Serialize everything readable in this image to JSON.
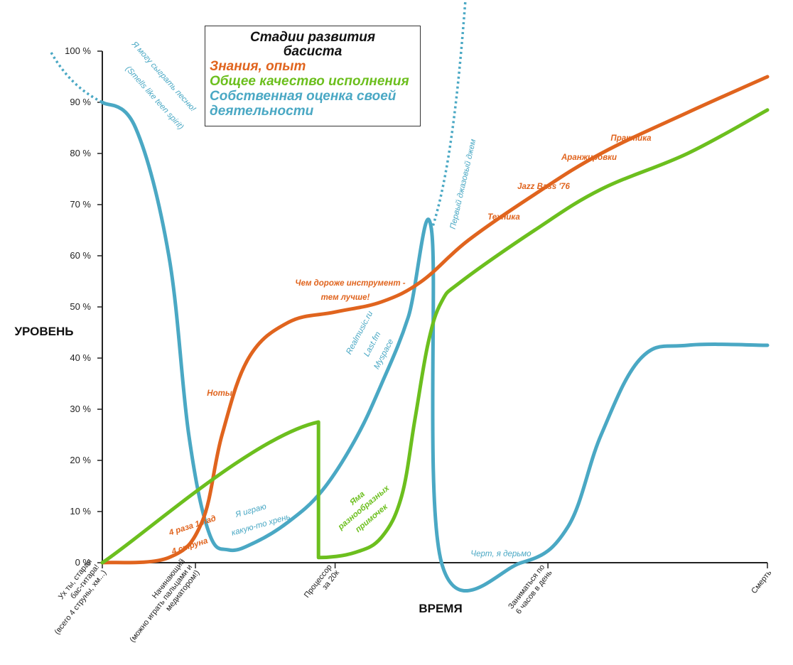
{
  "chart_data": {
    "type": "line",
    "title": "Стадии развития басиста",
    "ylabel": "УРОВЕНЬ",
    "xlabel": "ВРЕМЯ",
    "ylim": [
      0,
      100
    ],
    "xlim": [
      0,
      100
    ],
    "y_ticks": [
      "0 %",
      "10 %",
      "20 %",
      "30 %",
      "40 %",
      "50 %",
      "60 %",
      "70 %",
      "80 %",
      "90 %",
      "100 %"
    ],
    "x_ticks": [
      {
        "x": 0,
        "lines": [
          "Ух ты, старая",
          "бас-гитара!",
          "(всего 4 струны, хм...)"
        ]
      },
      {
        "x": 14,
        "lines": [
          "Начинающий",
          "(можно играть пальцами и",
          "медиатором!)"
        ]
      },
      {
        "x": 35,
        "lines": [
          "Процессор",
          "за 20к"
        ]
      },
      {
        "x": 67,
        "lines": [
          "Заниматься по",
          "6 часов в день"
        ]
      },
      {
        "x": 100,
        "lines": [
          "Смерть"
        ]
      }
    ],
    "legend_placement": "top-center",
    "series": [
      {
        "name": "Знания, опыт",
        "color": "#e0641e",
        "points": [
          [
            0,
            0
          ],
          [
            10,
            1
          ],
          [
            15,
            8
          ],
          [
            18,
            25
          ],
          [
            22,
            40
          ],
          [
            28,
            47
          ],
          [
            35,
            49
          ],
          [
            42,
            51
          ],
          [
            48,
            55
          ],
          [
            55,
            63
          ],
          [
            65,
            72
          ],
          [
            75,
            80
          ],
          [
            88,
            88
          ],
          [
            100,
            95
          ]
        ]
      },
      {
        "name": "Общее качество исполнения",
        "color": "#6cbf1e",
        "points": [
          [
            0,
            0
          ],
          [
            32.5,
            27.5
          ],
          [
            32.5,
            1
          ],
          [
            38,
            2
          ],
          [
            42,
            5
          ],
          [
            45,
            13
          ],
          [
            47,
            28
          ],
          [
            49,
            43
          ],
          [
            51,
            51
          ],
          [
            54,
            55
          ],
          [
            65,
            65
          ],
          [
            75,
            73
          ],
          [
            88,
            80
          ],
          [
            100,
            88.5
          ]
        ]
      },
      {
        "name": "Собственная оценка своей деятельности",
        "color": "#4aa8c4",
        "points": [
          [
            0,
            90
          ],
          [
            5,
            85
          ],
          [
            10,
            60
          ],
          [
            13,
            25
          ],
          [
            16,
            6
          ],
          [
            19,
            2.5
          ],
          [
            23,
            4
          ],
          [
            28,
            8
          ],
          [
            33,
            14
          ],
          [
            38,
            24
          ],
          [
            42,
            35
          ],
          [
            46,
            48
          ],
          [
            49.5,
            65
          ],
          [
            51,
            0
          ],
          [
            63,
            0
          ],
          [
            70,
            7
          ],
          [
            75,
            25
          ],
          [
            81,
            40
          ],
          [
            88,
            42.5
          ],
          [
            100,
            42.5
          ]
        ]
      }
    ],
    "annotations": [
      {
        "text": "Я могу сыграть песню!",
        "color": "#4aa8c4"
      },
      {
        "text": "(Smells like teen spirit)",
        "color": "#4aa8c4"
      },
      {
        "text": "Ноты",
        "color": "#e0641e"
      },
      {
        "text": "4 раза 1 лад",
        "color": "#e0641e"
      },
      {
        "text": "4 струна",
        "color": "#e0641e"
      },
      {
        "text": "Я играю",
        "color": "#4aa8c4"
      },
      {
        "text": "какую-то хрень",
        "color": "#4aa8c4"
      },
      {
        "text": "Чем дороже инструмент -",
        "color": "#e0641e"
      },
      {
        "text": "тем лучше!",
        "color": "#e0641e"
      },
      {
        "text": "Realmusic.ru",
        "color": "#4aa8c4"
      },
      {
        "text": "Last.fm",
        "color": "#4aa8c4"
      },
      {
        "text": "Myspace",
        "color": "#4aa8c4"
      },
      {
        "text": "Яма",
        "color": "#6cbf1e"
      },
      {
        "text": "разнообразных",
        "color": "#6cbf1e"
      },
      {
        "text": "примочек",
        "color": "#6cbf1e"
      },
      {
        "text": "Первый джазовый джем",
        "color": "#4aa8c4"
      },
      {
        "text": "Черт, я дерьмо",
        "color": "#4aa8c4"
      },
      {
        "text": "Техника",
        "color": "#e0641e"
      },
      {
        "text": "Jazz Bass '76",
        "color": "#e0641e"
      },
      {
        "text": "Аранжировки",
        "color": "#e0641e"
      },
      {
        "text": "Практика",
        "color": "#e0641e"
      }
    ]
  }
}
